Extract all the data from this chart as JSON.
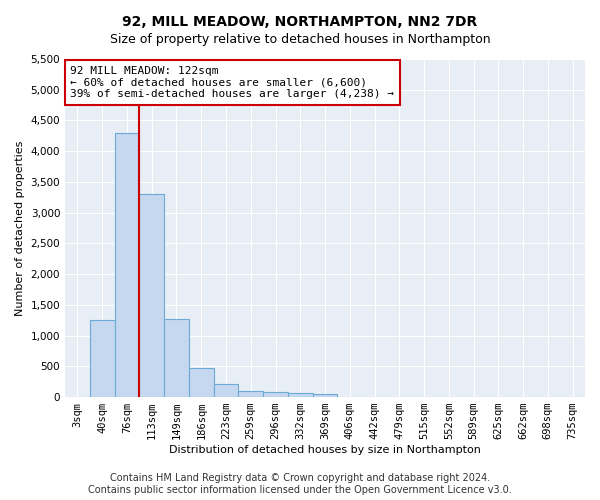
{
  "title": "92, MILL MEADOW, NORTHAMPTON, NN2 7DR",
  "subtitle": "Size of property relative to detached houses in Northampton",
  "xlabel": "Distribution of detached houses by size in Northampton",
  "ylabel": "Number of detached properties",
  "footer_line1": "Contains HM Land Registry data © Crown copyright and database right 2024.",
  "footer_line2": "Contains public sector information licensed under the Open Government Licence v3.0.",
  "annotation_line0": "92 MILL MEADOW: 122sqm",
  "annotation_line1": "← 60% of detached houses are smaller (6,600)",
  "annotation_line2": "39% of semi-detached houses are larger (4,238) →",
  "bar_labels": [
    "3sqm",
    "40sqm",
    "76sqm",
    "113sqm",
    "149sqm",
    "186sqm",
    "223sqm",
    "259sqm",
    "296sqm",
    "332sqm",
    "369sqm",
    "406sqm",
    "442sqm",
    "479sqm",
    "515sqm",
    "552sqm",
    "589sqm",
    "625sqm",
    "662sqm",
    "698sqm",
    "735sqm"
  ],
  "bar_values": [
    0,
    1250,
    4300,
    3300,
    1270,
    480,
    220,
    100,
    80,
    60,
    45,
    0,
    0,
    0,
    0,
    0,
    0,
    0,
    0,
    0,
    0
  ],
  "bar_color": "#c5d8ef",
  "bar_edge_color": "#6aaad4",
  "vline_color": "#cc0000",
  "vline_index": 2,
  "annotation_box_color": "#cc0000",
  "ylim": [
    0,
    5500
  ],
  "yticks": [
    0,
    500,
    1000,
    1500,
    2000,
    2500,
    3000,
    3500,
    4000,
    4500,
    5000,
    5500
  ],
  "bg_color": "#e8eef5",
  "fig_bg_color": "#ffffff",
  "title_fontsize": 10,
  "subtitle_fontsize": 9,
  "xlabel_fontsize": 8,
  "ylabel_fontsize": 8,
  "tick_fontsize": 7.5,
  "footer_fontsize": 7,
  "annotation_fontsize": 8
}
